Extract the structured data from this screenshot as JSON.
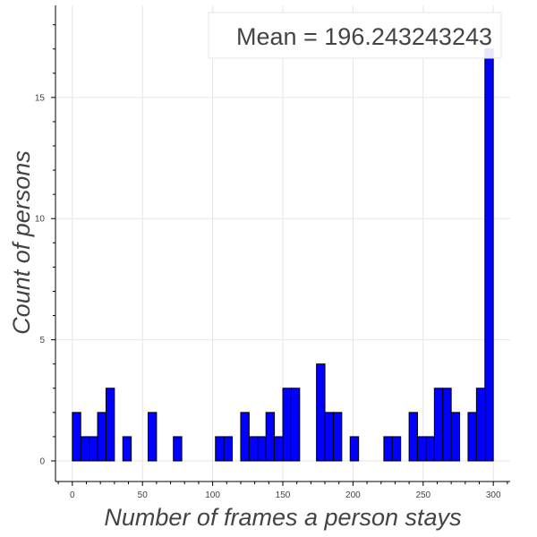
{
  "chart_data": {
    "type": "bar",
    "title": "",
    "xlabel": "Number of frames a person stays",
    "ylabel": "Count of persons",
    "annotation": "Mean = 196.243243243",
    "bar_color": "#0000ff",
    "edge_color": "#000000",
    "grid": true,
    "legend_position": "top-right",
    "xlim": [
      -12,
      312
    ],
    "ylim": [
      -0.85,
      18.8
    ],
    "x_ticks": [
      0,
      50,
      100,
      150,
      200,
      250,
      300
    ],
    "y_ticks": [
      0,
      5,
      10,
      15
    ],
    "bin_width": 6,
    "bin_start": 0,
    "values": [
      2,
      1,
      1,
      2,
      3,
      0,
      1,
      0,
      0,
      2,
      0,
      0,
      1,
      0,
      0,
      0,
      0,
      1,
      1,
      0,
      2,
      1,
      1,
      2,
      1,
      3,
      3,
      0,
      0,
      4,
      2,
      2,
      0,
      1,
      0,
      0,
      0,
      1,
      1,
      0,
      2,
      1,
      1,
      3,
      3,
      2,
      0,
      2,
      3,
      17
    ]
  }
}
